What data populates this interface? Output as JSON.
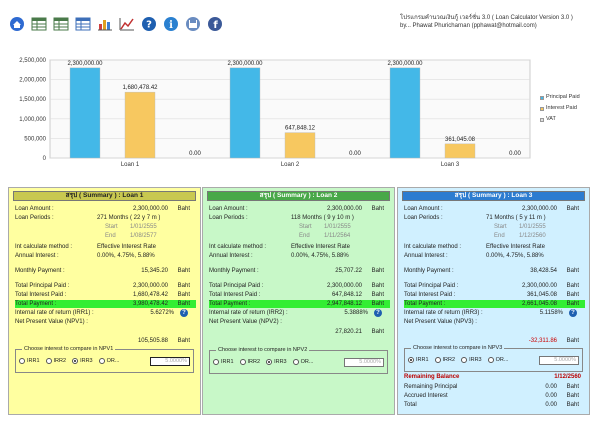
{
  "app": {
    "title_line1": "โปรแกรมคำนวณเงินกู้ เวอร์ชั่น 3.0 ( Loan Calculator Version 3.0 )",
    "title_line2": "by... Phawat Phuricharnan (pphawat@hotmail.com)"
  },
  "toolbar": [
    {
      "name": "home-icon",
      "color": "#2e6ad1"
    },
    {
      "name": "table-icon-1",
      "color": "#4a7a4a"
    },
    {
      "name": "table-icon-2",
      "color": "#4a7a4a"
    },
    {
      "name": "table-icon-3",
      "color": "#3d6fb8"
    },
    {
      "name": "bar-chart-icon",
      "color": "#e0a020"
    },
    {
      "name": "line-chart-icon",
      "color": "#c03030"
    },
    {
      "name": "help-icon",
      "color": "#1e5fb0"
    },
    {
      "name": "info-icon",
      "color": "#2a80d0"
    },
    {
      "name": "save-disk-icon",
      "color": "#6a8cc0"
    },
    {
      "name": "facebook-icon",
      "color": "#3b5998"
    }
  ],
  "chart_data": {
    "type": "bar",
    "categories": [
      "Loan 1",
      "Loan 2",
      "Loan 3"
    ],
    "series": [
      {
        "name": "Principal Paid",
        "values": [
          2300000,
          2300000,
          2300000
        ],
        "labels": [
          "2,300,000.00",
          "2,300,000.00",
          "2,300,000.00"
        ],
        "color": "#43b8e8"
      },
      {
        "name": "Interest Paid",
        "values": [
          1680478.42,
          647848.12,
          361045.08
        ],
        "labels": [
          "1,680,478.42",
          "647,848.12",
          "361,045.08"
        ],
        "color": "#f7c860"
      },
      {
        "name": "VAT",
        "values": [
          0,
          0,
          0
        ],
        "labels": [
          "0.00",
          "0.00",
          "0.00"
        ],
        "color": "#e0e0e0"
      }
    ],
    "yticks": [
      "0",
      "500,000",
      "1,000,000",
      "1,500,000",
      "2,000,000",
      "2,500,000"
    ],
    "ylim": [
      0,
      2500000
    ],
    "grid": true,
    "legend": "right"
  },
  "panels": [
    {
      "bg": "#ffffa0",
      "head_bg": "#c8c850",
      "title": "สรุป ( Summary ) : Loan 1",
      "loan_amount": {
        "label": "Loan Amount :",
        "value": "2,300,000.00",
        "unit": "Baht"
      },
      "loan_periods": {
        "label": "Loan Periods :",
        "value": "271 Months  ( 22 y 7 m )"
      },
      "start": {
        "label": "Start",
        "value": "1/01/2555"
      },
      "end": {
        "label": "End",
        "value": "1/08/2577"
      },
      "int_method": {
        "label": "Int calculate method :",
        "value": "Effective Interest Rate"
      },
      "annual_interest": {
        "label": "Annual Interest :",
        "value": "0.00%, 4.75%, 5.88%"
      },
      "monthly_payment": {
        "label": "Monthly Payment :",
        "value": "15,345.20",
        "unit": "Baht"
      },
      "total_principal": {
        "label": "Total Principal Paid :",
        "value": "2,300,000.00",
        "unit": "Baht"
      },
      "total_interest": {
        "label": "Total Interest Paid :",
        "value": "1,680,478.42",
        "unit": "Baht"
      },
      "total_payment": {
        "label": "Total Payment :",
        "value": "3,980,478.42",
        "unit": "Baht"
      },
      "irr": {
        "label": "Internal rate of return (IRR1) :",
        "value": "5.6272%"
      },
      "npv": {
        "label": "Net Present Value (NPV1) :",
        "value": "105,505.88",
        "unit": "Baht"
      },
      "npv_box": {
        "title": "Choose interest to compare in NPV1",
        "options": [
          "IRR1",
          "IRR2",
          "IRR3",
          "OR..."
        ],
        "selected": 2,
        "input": "5.0000%"
      }
    },
    {
      "bg": "#c8f8c8",
      "head_bg": "#48a848",
      "title": "สรุป ( Summary ) : Loan 2",
      "loan_amount": {
        "label": "Loan Amount :",
        "value": "2,300,000.00",
        "unit": "Baht"
      },
      "loan_periods": {
        "label": "Loan Periods :",
        "value": "118 Months  ( 9 y 10 m )"
      },
      "start": {
        "label": "Start",
        "value": "1/01/2555"
      },
      "end": {
        "label": "End",
        "value": "1/11/2564"
      },
      "int_method": {
        "label": "Int calculate method :",
        "value": "Effective Interest Rate"
      },
      "annual_interest": {
        "label": "Annual Interest :",
        "value": "0.00%, 4.75%, 5.88%"
      },
      "monthly_payment": {
        "label": "Monthly Payment :",
        "value": "25,707.22",
        "unit": "Baht"
      },
      "total_principal": {
        "label": "Total Principal Paid :",
        "value": "2,300,000.00",
        "unit": "Baht"
      },
      "total_interest": {
        "label": "Total Interest Paid :",
        "value": "647,848.12",
        "unit": "Baht"
      },
      "total_payment": {
        "label": "Total Payment :",
        "value": "2,947,848.12",
        "unit": "Baht"
      },
      "irr": {
        "label": "Internal rate of return (IRR2) :",
        "value": "5.3888%"
      },
      "npv": {
        "label": "Net Present Value (NPV2) :",
        "value": "27,820.21",
        "unit": "Baht"
      },
      "npv_box": {
        "title": "Choose interest to compare in NPV2",
        "options": [
          "IRR1",
          "IRR2",
          "IRR3",
          "OR..."
        ],
        "selected": 2,
        "input": "5.0000%"
      }
    },
    {
      "bg": "#d0f0ff",
      "head_bg": "#2c7cd0",
      "title": "สรุป ( Summary ) : Loan 3",
      "loan_amount": {
        "label": "Loan Amount :",
        "value": "2,300,000.00",
        "unit": "Baht"
      },
      "loan_periods": {
        "label": "Loan Periods :",
        "value": "71 Months  ( 5 y 11 m )"
      },
      "start": {
        "label": "Start",
        "value": "1/01/2555"
      },
      "end": {
        "label": "End",
        "value": "1/12/2560"
      },
      "int_method": {
        "label": "Int calculate method :",
        "value": "Effective Interest Rate"
      },
      "annual_interest": {
        "label": "Annual Interest :",
        "value": "0.00%, 4.75%, 5.88%"
      },
      "monthly_payment": {
        "label": "Monthly Payment :",
        "value": "38,428.54",
        "unit": "Baht"
      },
      "total_principal": {
        "label": "Total Principal Paid :",
        "value": "2,300,000.00",
        "unit": "Baht"
      },
      "total_interest": {
        "label": "Total Interest Paid :",
        "value": "361,045.08",
        "unit": "Baht"
      },
      "total_payment": {
        "label": "Total Payment :",
        "value": "2,661,045.08",
        "unit": "Baht"
      },
      "irr": {
        "label": "Internal rate of return (IRR3) :",
        "value": "5.1158%"
      },
      "npv": {
        "label": "Net Present Value (NPV3) :",
        "value": "-32,311.86",
        "unit": "Baht"
      },
      "npv_box": {
        "title": "Choose interest to compare in NPV3",
        "options": [
          "IRR1",
          "IRR2",
          "IRR3",
          "OR..."
        ],
        "selected": 0,
        "input": "5.0000%"
      },
      "remaining": {
        "title": "Remaining Balance",
        "date": "1/12/2560",
        "rows": [
          {
            "label": "Remaining Principal",
            "value": "0.00",
            "unit": "Baht"
          },
          {
            "label": "Accrued Interest",
            "value": "0.00",
            "unit": "Baht"
          },
          {
            "label": "Total",
            "value": "0.00",
            "unit": "Baht"
          }
        ]
      }
    }
  ]
}
